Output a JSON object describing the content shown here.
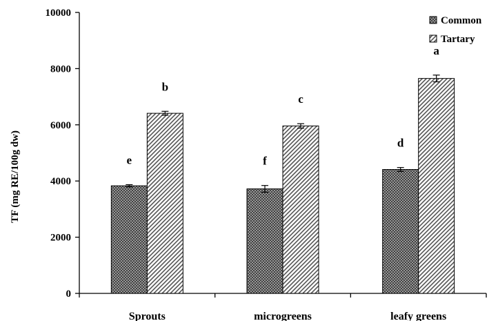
{
  "chart_data": {
    "type": "bar",
    "title": "",
    "xlabel": "",
    "ylabel": "TF (mg RE/100g dw)",
    "ylim": [
      0,
      10000
    ],
    "yticks": [
      0,
      2000,
      4000,
      6000,
      8000,
      10000
    ],
    "grid": false,
    "legend_position": "top-right",
    "categories": [
      "Sprouts",
      "microgreens",
      "leafy greens"
    ],
    "series": [
      {
        "name": "Common",
        "pattern": "crosshatch-dark",
        "color": "#555555",
        "values": [
          3830,
          3720,
          4410
        ],
        "errors": [
          40,
          120,
          70
        ],
        "labels": [
          "e",
          "f",
          "d"
        ]
      },
      {
        "name": "Tartary",
        "pattern": "diagonal-stripes",
        "color": "#777777",
        "values": [
          6410,
          5960,
          7650
        ],
        "errors": [
          70,
          80,
          120
        ],
        "labels": [
          "b",
          "c",
          "a"
        ]
      }
    ]
  }
}
